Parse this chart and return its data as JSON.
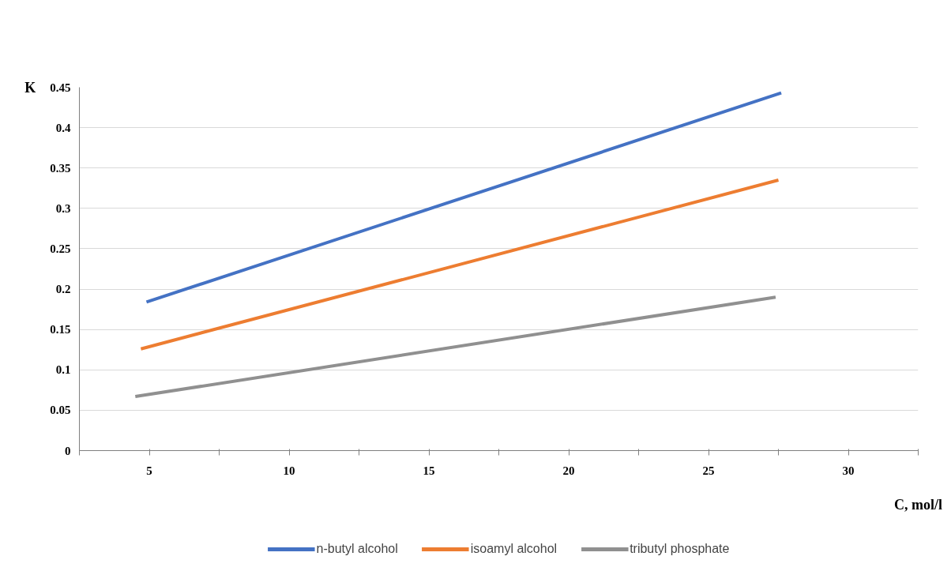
{
  "chart_data": {
    "type": "line",
    "xlabel": "C, mol/l",
    "ylabel": "K",
    "xlim": [
      2.5,
      32.5
    ],
    "xticks": [
      {
        "value": 2.5,
        "label": null
      },
      5,
      {
        "value": 7.5,
        "label": null
      },
      10,
      {
        "value": 12.5,
        "label": null
      },
      15,
      {
        "value": 17.5,
        "label": null
      },
      20,
      {
        "value": 22.5,
        "label": null
      },
      25,
      {
        "value": 27.5,
        "label": null
      },
      30,
      {
        "value": 32.5,
        "label": null
      }
    ],
    "ylim": [
      0,
      0.45
    ],
    "yticks": [
      0,
      0.05,
      0.1,
      0.15,
      0.2,
      0.25,
      0.3,
      0.35,
      0.4,
      0.45
    ],
    "grid": "y",
    "legend": "bottom",
    "marker": "none",
    "line_style": "solid",
    "series": [
      {
        "name": "n-butyl alcohol",
        "color": "#4472c4",
        "x": [
          4.9,
          27.6
        ],
        "values": [
          0.184,
          0.443
        ]
      },
      {
        "name": "isoamyl alcohol",
        "color": "#ed7d31",
        "x": [
          4.7,
          27.5
        ],
        "values": [
          0.126,
          0.335
        ]
      },
      {
        "name": "tributyl phosphate",
        "color": "#909090",
        "x": [
          4.5,
          27.4
        ],
        "values": [
          0.067,
          0.19
        ]
      }
    ]
  }
}
